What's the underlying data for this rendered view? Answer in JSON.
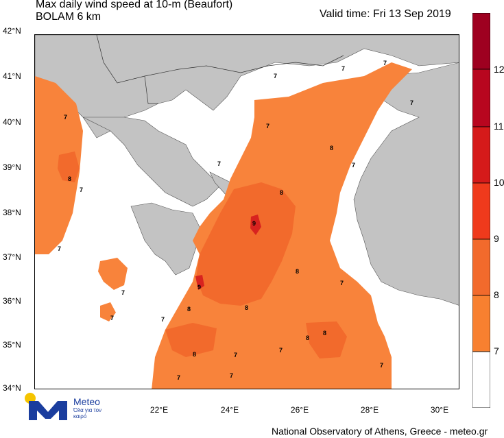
{
  "header": {
    "title_line1": "Max daily wind speed at 10-m (Beaufort)",
    "title_line2": "BOLAM 6 km",
    "valid_time": "Valid time: Fri 13 Sep 2019"
  },
  "axes": {
    "lat_ticks": [
      "42°N",
      "41°N",
      "40°N",
      "39°N",
      "38°N",
      "37°N",
      "36°N",
      "35°N",
      "34°N"
    ],
    "lon_ticks": [
      "22°E",
      "24°E",
      "26°E",
      "28°E",
      "30°E"
    ]
  },
  "colorbar": {
    "labels": [
      "12",
      "11",
      "10",
      "9",
      "8",
      "7"
    ],
    "colors": {
      "b12": "#9e0020",
      "b11": "#b8061f",
      "b10": "#d51a1a",
      "b9": "#ef3a1c",
      "b8": "#f26a2c",
      "b7": "#f88030",
      "b0": "#ffffff"
    }
  },
  "map_colors": {
    "sea": "#ffffff",
    "land": "#c3c3c3",
    "border": "#333333",
    "beaufort7": "#f8833b",
    "beaufort8": "#f26a2c",
    "beaufort9": "#d8231f"
  },
  "contour_labels": [
    "7",
    "8",
    "9"
  ],
  "logo": {
    "name": "Meteo",
    "tagline": "Όλα για τον καιρό"
  },
  "footer": "National Observatory of Athens, Greece - meteo.gr"
}
